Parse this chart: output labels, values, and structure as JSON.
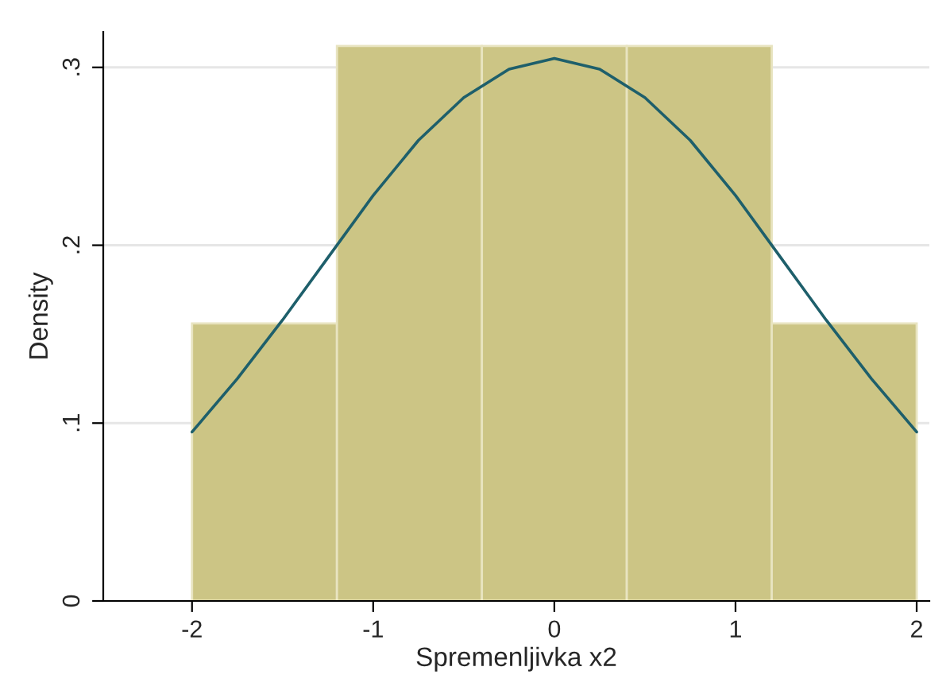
{
  "chart_data": {
    "type": "histogram",
    "xlabel": "Spremenljivka x2",
    "ylabel": "Density",
    "bins": [
      -2,
      -1.2,
      -0.4,
      0.4,
      1.2,
      2
    ],
    "values": [
      0.156,
      0.312,
      0.312,
      0.312,
      0.156
    ],
    "color": "#ccc585",
    "series": [
      {
        "type": "line",
        "color": "#1e5f6b",
        "x": [
          -2,
          -1.75,
          -1.5,
          -1.25,
          -1,
          -0.75,
          -0.5,
          -0.25,
          0,
          0.25,
          0.5,
          0.75,
          1,
          1.25,
          1.5,
          1.75,
          2
        ],
        "values": [
          0.095,
          0.125,
          0.158,
          0.193,
          0.228,
          0.259,
          0.283,
          0.299,
          0.305,
          0.299,
          0.283,
          0.259,
          0.228,
          0.193,
          0.158,
          0.125,
          0.095
        ]
      }
    ],
    "xlim": [
      -2.49,
      2.07
    ],
    "ylim": [
      0,
      0.32
    ],
    "xticks": [
      -2,
      -1,
      0,
      1,
      2
    ],
    "yticks": [
      {
        "value": 0,
        "label": "0"
      },
      {
        "value": 0.1,
        "label": ".1"
      },
      {
        "value": 0.2,
        "label": ".2"
      },
      {
        "value": 0.3,
        "label": ".3"
      }
    ],
    "grid": "y"
  }
}
